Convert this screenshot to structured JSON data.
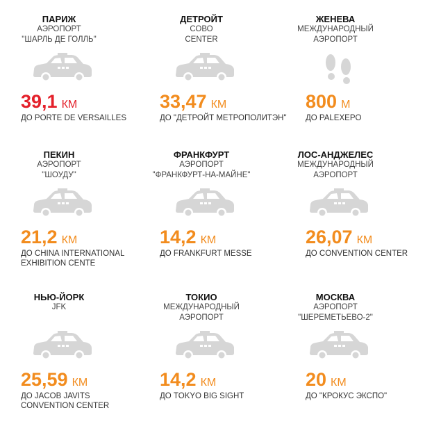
{
  "cells": [
    {
      "city": "ПАРИЖ",
      "airport": [
        "АЭРОПОРТ",
        "\"ШАРЛЬ ДЕ ГОЛЛЬ\""
      ],
      "distance": "39,1",
      "unit": "КМ",
      "destination": [
        "ДО PORTE DE VERSAILLES"
      ],
      "icon": "car",
      "color": "#e4202a"
    },
    {
      "city": "ДЕТРОЙТ",
      "airport": [
        "СОВО",
        "CENTER"
      ],
      "distance": "33,47",
      "unit": "КМ",
      "destination": [
        "ДО \"ДЕТРОЙТ МЕТРОПОЛИТЭН\""
      ],
      "icon": "car",
      "color": "#f28c1e"
    },
    {
      "city": "ЖЕНЕВА",
      "airport": [
        "МЕЖДУНАРОДНЫЙ",
        "АЭРОПОРТ"
      ],
      "distance": "800",
      "unit": "М",
      "destination": [
        "ДО PALEXEPO"
      ],
      "icon": "feet",
      "color": "#f28c1e"
    },
    {
      "city": "ПЕКИН",
      "airport": [
        "АЭРОПОРТ",
        "\"ШОУДУ\""
      ],
      "distance": "21,2",
      "unit": "КМ",
      "destination": [
        "ДО CHINA INTERNATIONAL",
        "EXHIBITION CENTE"
      ],
      "icon": "car",
      "color": "#f28c1e"
    },
    {
      "city": "ФРАНКФУРТ",
      "airport": [
        "АЭРОПОРТ",
        "\"ФРАНКФУРТ-НА-МАЙНЕ\""
      ],
      "distance": "14,2",
      "unit": "КМ",
      "destination": [
        "ДО FRANKFURT MESSE"
      ],
      "icon": "car",
      "color": "#f28c1e"
    },
    {
      "city": "ЛОС-АНДЖЕЛЕС",
      "airport": [
        "МЕЖДУНАРОДНЫЙ",
        "АЭРОПОРТ"
      ],
      "distance": "26,07",
      "unit": "КМ",
      "destination": [
        "ДО CONVENTION CENTER"
      ],
      "icon": "car",
      "color": "#f28c1e"
    },
    {
      "city": "НЬЮ-ЙОРК",
      "airport": [
        "JFK"
      ],
      "distance": "25,59",
      "unit": "КМ",
      "destination": [
        "ДО JACOB JAVITS",
        "CONVENTION CENTER"
      ],
      "icon": "car",
      "color": "#f28c1e"
    },
    {
      "city": "ТОКИО",
      "airport": [
        "МЕЖДУНАРОДНЫЙ",
        "АЭРОПОРТ"
      ],
      "distance": "14,2",
      "unit": "КМ",
      "destination": [
        "ДО TOKYO BIG SIGHT"
      ],
      "icon": "car",
      "color": "#f28c1e"
    },
    {
      "city": "МОСКВА",
      "airport": [
        "АЭРОПОРТ",
        "\"ШЕРЕМЕТЬЕВО-2\""
      ],
      "distance": "20",
      "unit": "КМ",
      "destination": [
        "ДО \"КРОКУС ЭКСПО\""
      ],
      "icon": "car",
      "color": "#f28c1e"
    }
  ]
}
